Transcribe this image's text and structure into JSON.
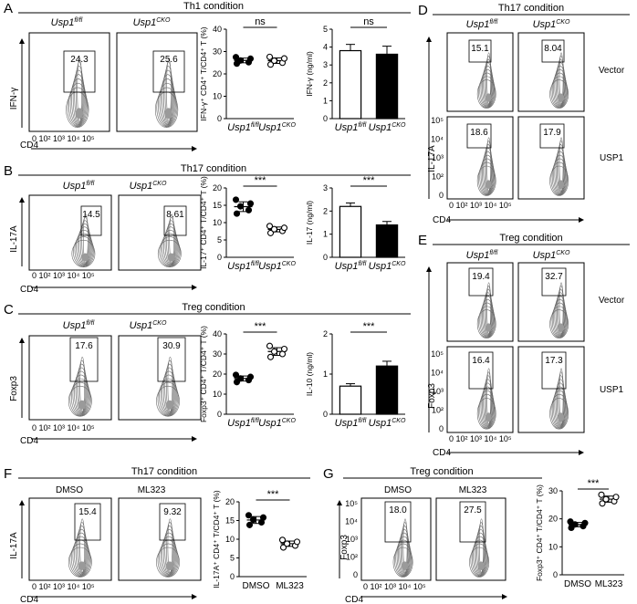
{
  "conditions": {
    "th1": "Th1 condition",
    "th17": "Th17 condition",
    "treg": "Treg condition"
  },
  "genotypes": {
    "flfl": "Usp1fl/fl",
    "cko": "Usp1CKO"
  },
  "treatments": {
    "dmso": "DMSO",
    "ml323": "ML323"
  },
  "rows": {
    "vector": "Vector",
    "usp1": "USP1"
  },
  "markers": {
    "cd4": "CD4",
    "ifng": "IFN-γ",
    "il17a": "IL-17A",
    "foxp3": "Foxp3"
  },
  "ticks": {
    "flow_x": "0 10² 10³ 10⁴ 10⁵",
    "flow_y": [
      "10⁵",
      "10⁴",
      "10³",
      "10²",
      "0"
    ]
  },
  "percentages": {
    "A": [
      "24.3",
      "25.6"
    ],
    "B": [
      "14.5",
      "8.61"
    ],
    "C": [
      "17.6",
      "30.9"
    ],
    "D": [
      "15.1",
      "8.04",
      "18.6",
      "17.9"
    ],
    "E": [
      "19.4",
      "32.7",
      "16.4",
      "17.3"
    ],
    "F": [
      "15.4",
      "9.32"
    ],
    "G": [
      "18.0",
      "27.5"
    ]
  },
  "panels": [
    "A",
    "B",
    "C",
    "D",
    "E",
    "F",
    "G"
  ],
  "significance": {
    "ns": "ns",
    "p": "***"
  },
  "chart_data": [
    {
      "panel": "A-left",
      "type": "scatter",
      "ylabel": "IFN-γ⁺ CD4⁺ T/CD4⁺ T (%)",
      "ylim": [
        0,
        40
      ],
      "yticks": [
        0,
        10,
        20,
        30,
        40
      ],
      "categories": [
        "Usp1fl/fl",
        "Usp1CKO"
      ],
      "series": [
        {
          "values": [
            24.6,
            25.2,
            26.0,
            26.8,
            27.5
          ]
        },
        {
          "values": [
            24.2,
            25.0,
            25.9,
            26.9,
            27.6
          ]
        }
      ],
      "significance": "ns"
    },
    {
      "panel": "A-right",
      "type": "bar",
      "ylabel": "IFN-γ (ng/ml)",
      "ylim": [
        0,
        5
      ],
      "yticks": [
        0,
        1,
        2,
        3,
        4,
        5
      ],
      "categories": [
        "Usp1fl/fl",
        "Usp1CKO"
      ],
      "values": [
        3.8,
        3.6
      ],
      "errors": [
        0.35,
        0.45
      ],
      "colors": [
        "#ffffff",
        "#000000"
      ],
      "significance": "ns"
    },
    {
      "panel": "B-left",
      "type": "scatter",
      "ylabel": "IL-17⁺ CD4⁺ T/CD4⁺ T (%)",
      "ylim": [
        0,
        20
      ],
      "yticks": [
        0,
        5,
        10,
        15,
        20
      ],
      "categories": [
        "Usp1fl/fl",
        "Usp1CKO"
      ],
      "series": [
        {
          "values": [
            12.6,
            13.6,
            14.7,
            15.5,
            16.6
          ]
        },
        {
          "values": [
            7.0,
            7.6,
            8.1,
            8.5,
            9.0
          ]
        }
      ],
      "significance": "***"
    },
    {
      "panel": "B-right",
      "type": "bar",
      "ylabel": "IL-17 (ng/ml)",
      "ylim": [
        0,
        3
      ],
      "yticks": [
        0,
        1,
        2,
        3
      ],
      "categories": [
        "Usp1fl/fl",
        "Usp1CKO"
      ],
      "values": [
        2.2,
        1.4
      ],
      "errors": [
        0.15,
        0.15
      ],
      "colors": [
        "#ffffff",
        "#000000"
      ],
      "significance": "***"
    },
    {
      "panel": "C-left",
      "type": "scatter",
      "ylabel": "Foxp3⁺ CD4⁺ T/CD4⁺ T (%)",
      "ylim": [
        0,
        40
      ],
      "yticks": [
        0,
        10,
        20,
        30,
        40
      ],
      "categories": [
        "Usp1fl/fl",
        "Usp1CKO"
      ],
      "series": [
        {
          "values": [
            16.0,
            17.0,
            17.8,
            18.6,
            19.6
          ]
        },
        {
          "values": [
            28.5,
            30.0,
            31.2,
            32.5,
            34.0
          ]
        }
      ],
      "significance": "***"
    },
    {
      "panel": "C-right",
      "type": "bar",
      "ylabel": "IL-10 (ng/ml)",
      "ylim": [
        0,
        2
      ],
      "yticks": [
        0,
        1,
        2
      ],
      "categories": [
        "Usp1fl/fl",
        "Usp1CKO"
      ],
      "values": [
        0.7,
        1.2
      ],
      "errors": [
        0.06,
        0.12
      ],
      "colors": [
        "#ffffff",
        "#000000"
      ],
      "significance": "***"
    },
    {
      "panel": "F",
      "type": "scatter",
      "ylabel": "IL-17A⁺ CD4⁺ T/CD4⁺ T (%)",
      "ylim": [
        0,
        20
      ],
      "yticks": [
        0,
        5,
        10,
        15,
        20
      ],
      "categories": [
        "DMSO",
        "ML323"
      ],
      "series": [
        {
          "values": [
            13.8,
            14.5,
            15.2,
            15.8,
            16.4
          ]
        },
        {
          "values": [
            7.8,
            8.3,
            8.8,
            9.3,
            9.8
          ]
        }
      ],
      "significance": "***"
    },
    {
      "panel": "G",
      "type": "scatter",
      "ylabel": "Foxp3⁺ CD4⁺ T/CD4⁺ T (%)",
      "ylim": [
        0,
        30
      ],
      "yticks": [
        0,
        10,
        20,
        30
      ],
      "categories": [
        "DMSO",
        "ML323"
      ],
      "series": [
        {
          "values": [
            16.8,
            17.4,
            18.0,
            18.5,
            19.0
          ]
        },
        {
          "values": [
            25.5,
            26.3,
            27.0,
            27.8,
            28.6
          ]
        }
      ],
      "significance": "***"
    }
  ]
}
